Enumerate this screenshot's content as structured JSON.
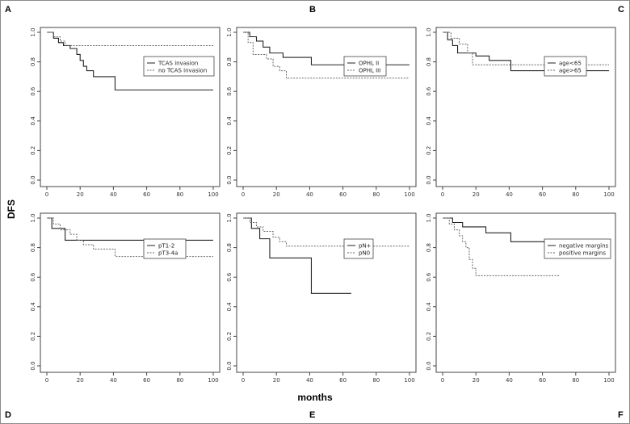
{
  "figure": {
    "ylabel": "DFS",
    "xlabel": "months",
    "panel_letters": [
      "A",
      "B",
      "C",
      "D",
      "E",
      "F"
    ]
  },
  "chart_data": [
    {
      "type": "line",
      "panel": "A",
      "xlim": [
        0,
        100
      ],
      "ylim": [
        0,
        1
      ],
      "xticks": [
        0,
        20,
        40,
        60,
        80,
        100
      ],
      "yticks": [
        "0.0",
        "0.2",
        "0.4",
        "0.6",
        "0.8",
        "1.0"
      ],
      "legend_position": "top-right",
      "series": [
        {
          "name": "TCAS invasion",
          "style": "solid",
          "x": [
            0,
            4,
            7,
            10,
            14,
            18,
            20,
            22,
            24,
            28,
            41,
            100
          ],
          "y": [
            1.0,
            0.96,
            0.93,
            0.91,
            0.89,
            0.85,
            0.81,
            0.77,
            0.74,
            0.7,
            0.61,
            0.61
          ]
        },
        {
          "name": "no TCAS invasion",
          "style": "dashed",
          "x": [
            0,
            4,
            8,
            11,
            100
          ],
          "y": [
            1.0,
            0.97,
            0.94,
            0.91,
            0.91
          ]
        }
      ]
    },
    {
      "type": "line",
      "panel": "B",
      "xlim": [
        0,
        100
      ],
      "ylim": [
        0,
        1
      ],
      "xticks": [
        0,
        20,
        40,
        60,
        80,
        100
      ],
      "yticks": [
        "0.0",
        "0.2",
        "0.4",
        "0.6",
        "0.8",
        "1.0"
      ],
      "legend_position": "top-right",
      "series": [
        {
          "name": "OPHL II",
          "style": "solid",
          "x": [
            0,
            4,
            8,
            12,
            16,
            24,
            41,
            100
          ],
          "y": [
            1.0,
            0.97,
            0.94,
            0.9,
            0.86,
            0.83,
            0.78,
            0.78
          ]
        },
        {
          "name": "OPHL III",
          "style": "dashed",
          "x": [
            0,
            3,
            6,
            14,
            18,
            22,
            26,
            100
          ],
          "y": [
            1.0,
            0.93,
            0.85,
            0.82,
            0.77,
            0.74,
            0.69,
            0.69
          ]
        }
      ]
    },
    {
      "type": "line",
      "panel": "C",
      "xlim": [
        0,
        100
      ],
      "ylim": [
        0,
        1
      ],
      "xticks": [
        0,
        20,
        40,
        60,
        80,
        100
      ],
      "yticks": [
        "0.0",
        "0.2",
        "0.4",
        "0.6",
        "0.8",
        "1.0"
      ],
      "legend_position": "top-right",
      "series": [
        {
          "name": "age<65",
          "style": "solid",
          "x": [
            0,
            3,
            6,
            9,
            20,
            28,
            41,
            100
          ],
          "y": [
            1.0,
            0.95,
            0.91,
            0.86,
            0.84,
            0.81,
            0.74,
            0.74
          ]
        },
        {
          "name": "age>65",
          "style": "dashed",
          "x": [
            0,
            5,
            10,
            15,
            18,
            100
          ],
          "y": [
            1.0,
            0.96,
            0.92,
            0.86,
            0.78,
            0.78
          ]
        }
      ]
    },
    {
      "type": "line",
      "panel": "D",
      "xlim": [
        0,
        100
      ],
      "ylim": [
        0,
        1
      ],
      "xticks": [
        0,
        20,
        40,
        60,
        80,
        100
      ],
      "yticks": [
        "0.0",
        "0.2",
        "0.4",
        "0.6",
        "0.8",
        "1.0"
      ],
      "legend_position": "top-right",
      "series": [
        {
          "name": "pT1-2",
          "style": "solid",
          "x": [
            0,
            3,
            11,
            100
          ],
          "y": [
            1.0,
            0.93,
            0.85,
            0.85
          ]
        },
        {
          "name": "pT3-4a",
          "style": "dashed",
          "x": [
            0,
            4,
            8,
            14,
            18,
            22,
            28,
            41,
            100
          ],
          "y": [
            1.0,
            0.96,
            0.92,
            0.89,
            0.85,
            0.82,
            0.79,
            0.74,
            0.74
          ]
        }
      ]
    },
    {
      "type": "line",
      "panel": "E",
      "xlim": [
        0,
        100
      ],
      "ylim": [
        0,
        1
      ],
      "xticks": [
        0,
        20,
        40,
        60,
        80,
        100
      ],
      "yticks": [
        "0.0",
        "0.2",
        "0.4",
        "0.6",
        "0.8",
        "1.0"
      ],
      "legend_position": "top-right",
      "series": [
        {
          "name": "pN+",
          "style": "solid",
          "x": [
            0,
            5,
            10,
            16,
            41,
            65
          ],
          "y": [
            1.0,
            0.93,
            0.86,
            0.73,
            0.49,
            0.49
          ]
        },
        {
          "name": "pN0",
          "style": "dashed",
          "x": [
            0,
            4,
            8,
            12,
            18,
            22,
            26,
            100
          ],
          "y": [
            1.0,
            0.97,
            0.94,
            0.91,
            0.87,
            0.84,
            0.81,
            0.81
          ]
        }
      ]
    },
    {
      "type": "line",
      "panel": "F",
      "xlim": [
        0,
        100
      ],
      "ylim": [
        0,
        1
      ],
      "xticks": [
        0,
        20,
        40,
        60,
        80,
        100
      ],
      "yticks": [
        "0.0",
        "0.2",
        "0.4",
        "0.6",
        "0.8",
        "1.0"
      ],
      "legend_position": "top-right",
      "series": [
        {
          "name": "negative margins",
          "style": "solid",
          "x": [
            0,
            6,
            12,
            26,
            41,
            100
          ],
          "y": [
            1.0,
            0.97,
            0.94,
            0.9,
            0.84,
            0.84
          ]
        },
        {
          "name": "positive margins",
          "style": "dashed",
          "x": [
            0,
            4,
            7,
            10,
            12,
            14,
            16,
            18,
            20,
            70
          ],
          "y": [
            1.0,
            0.96,
            0.92,
            0.88,
            0.84,
            0.8,
            0.72,
            0.66,
            0.61,
            0.61
          ]
        }
      ]
    }
  ]
}
